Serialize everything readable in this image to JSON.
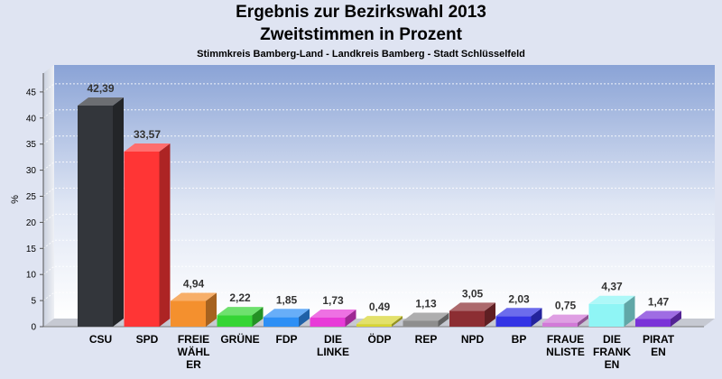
{
  "title": "Ergebnis zur Bezirkswahl 2013",
  "subtitle": "Zweitstimmen in Prozent",
  "subtitle2": "Stimmkreis Bamberg-Land - Landkreis Bamberg - Stadt Schlüsselfeld",
  "chart_data": {
    "type": "bar",
    "ylabel": "%",
    "ylim": [
      0,
      48
    ],
    "yticks": [
      0,
      5,
      10,
      15,
      20,
      25,
      30,
      35,
      40,
      45
    ],
    "grid": true,
    "categories": [
      [
        "CSU"
      ],
      [
        "SPD"
      ],
      [
        "FREIE",
        "WÄHL",
        "ER"
      ],
      [
        "GRÜNE"
      ],
      [
        "FDP"
      ],
      [
        "DIE",
        "LINKE"
      ],
      [
        "ÖDP"
      ],
      [
        "REP"
      ],
      [
        "NPD"
      ],
      [
        "BP"
      ],
      [
        "FRAUE",
        "NLISTE"
      ],
      [
        "DIE",
        "FRANK",
        "EN"
      ],
      [
        "PIRAT",
        "EN"
      ]
    ],
    "values": [
      42.39,
      33.57,
      4.94,
      2.22,
      1.85,
      1.73,
      0.49,
      1.13,
      3.05,
      2.03,
      0.75,
      4.37,
      1.47
    ],
    "value_labels": [
      "42,39",
      "33,57",
      "4,94",
      "2,22",
      "1,85",
      "1,73",
      "0,49",
      "1,13",
      "3,05",
      "2,03",
      "0,75",
      "4,37",
      "1,47"
    ],
    "colors": [
      "#33363b",
      "#ff3535",
      "#f4902e",
      "#35d535",
      "#2d8ff5",
      "#e83ad8",
      "#d8d531",
      "#8e8e8e",
      "#8c2e33",
      "#3333e5",
      "#d27ad8",
      "#8ff5f5",
      "#7a33d8"
    ]
  }
}
